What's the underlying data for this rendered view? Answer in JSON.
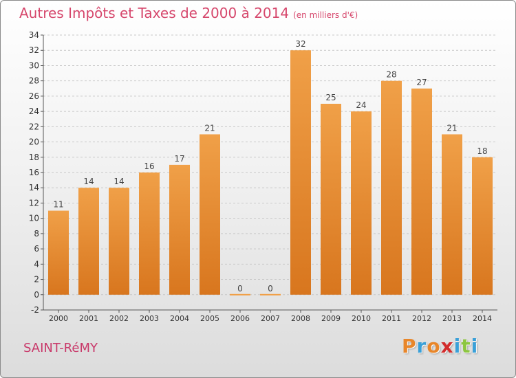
{
  "title": {
    "main": "Autres Impôts et Taxes de 2000 à 2014",
    "unit": "(en milliers d'€)"
  },
  "commune": "SAINT-RéMY",
  "brand": {
    "letters": [
      "P",
      "r",
      "o",
      "x",
      "i",
      "t",
      "i"
    ],
    "colors": [
      "#e8862a",
      "#3aa0d8",
      "#e8862a",
      "#d22c2c",
      "#3aa0d8",
      "#8cc63f",
      "#3aa0d8"
    ]
  },
  "chart_data": {
    "type": "bar",
    "categories": [
      "2000",
      "2001",
      "2002",
      "2003",
      "2004",
      "2005",
      "2006",
      "2007",
      "2008",
      "2009",
      "2010",
      "2011",
      "2012",
      "2013",
      "2014"
    ],
    "values": [
      11,
      14,
      14,
      16,
      17,
      21,
      0,
      0,
      32,
      25,
      24,
      28,
      27,
      21,
      18
    ],
    "value_labels": [
      "11",
      "14",
      "14",
      "16",
      "17",
      "21",
      "0",
      "0",
      "32",
      "25",
      "24",
      "28",
      "27",
      "21",
      "18"
    ],
    "yticks": [
      "-2",
      "0",
      "2",
      "4",
      "6",
      "8",
      "10",
      "12",
      "14",
      "16",
      "18",
      "20",
      "22",
      "24",
      "26",
      "28",
      "30",
      "32",
      "34"
    ],
    "ylim": [
      -2,
      34
    ],
    "grid": true,
    "bar_color": "#f0a048",
    "bar_color_dark": "#d8761e",
    "grid_color": "#c8c8c8"
  }
}
